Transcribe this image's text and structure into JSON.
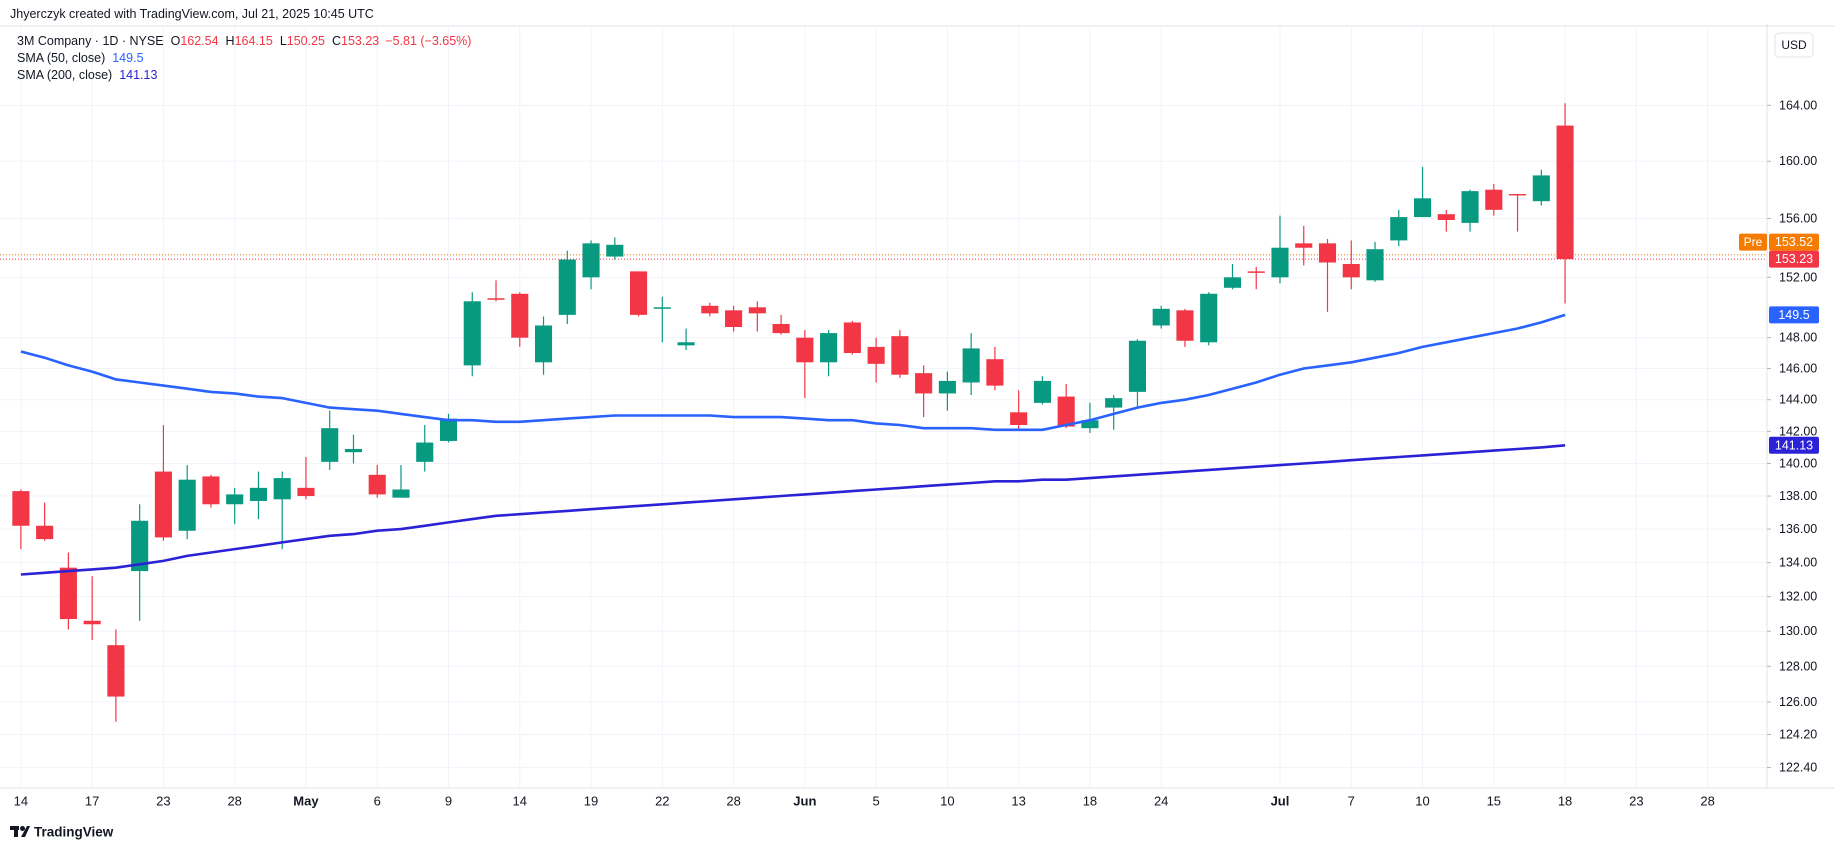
{
  "header": "Jhyerczyk created with TradingView.com, Jul 21, 2025 10:45 UTC",
  "footer": "TradingView",
  "currency": "USD",
  "chart_data": {
    "type": "candlestick",
    "title": "3M Company · 1D · NYSE",
    "ohlc_labels": [
      "O",
      "H",
      "L",
      "C"
    ],
    "change_label": "−5.81 (−3.65%)",
    "categories": [
      "14",
      null,
      null,
      "17",
      null,
      null,
      "23",
      null,
      null,
      "28",
      null,
      null,
      "May",
      null,
      null,
      "6",
      null,
      null,
      "9",
      null,
      null,
      "14",
      null,
      null,
      "19",
      null,
      null,
      "22",
      null,
      null,
      "28",
      null,
      null,
      "Jun",
      null,
      null,
      "5",
      null,
      null,
      "10",
      null,
      null,
      "13",
      null,
      null,
      "18",
      null,
      null,
      "24",
      null,
      null,
      null,
      null,
      "Jul",
      null,
      null,
      "7",
      null,
      null,
      "10",
      null,
      null,
      "15",
      null,
      null,
      "18",
      null,
      null,
      "23",
      null,
      null,
      "28",
      null,
      null
    ],
    "open": [
      138.3,
      136.2,
      133.7,
      130.6,
      129.2,
      133.5,
      139.5,
      135.9,
      139.2,
      137.5,
      137.7,
      137.8,
      138.5,
      140.1,
      140.7,
      139.3,
      137.9,
      140.1,
      141.4,
      146.2,
      150.6,
      150.9,
      146.4,
      149.5,
      152.0,
      153.4,
      152.4,
      149.9,
      147.5,
      150.1,
      149.8,
      150.0,
      148.9,
      148.0,
      146.4,
      149.0,
      147.4,
      148.1,
      145.7,
      144.4,
      145.1,
      146.6,
      143.2,
      143.8,
      144.2,
      142.2,
      143.5,
      144.5,
      148.8,
      149.8,
      147.7,
      151.3,
      152.4,
      152.0,
      154.3,
      154.3,
      152.9,
      151.8,
      154.5,
      156.1,
      156.3,
      155.7,
      158.0,
      157.7,
      157.2,
      162.54,
      null,
      null,
      null,
      null,
      null,
      null,
      null,
      null
    ],
    "high": [
      138.4,
      137.6,
      134.6,
      133.2,
      130.1,
      137.5,
      142.4,
      139.9,
      139.3,
      138.5,
      139.5,
      139.5,
      140.4,
      143.3,
      141.8,
      139.9,
      139.9,
      142.4,
      143.1,
      151.0,
      151.8,
      151.0,
      149.4,
      153.8,
      154.5,
      154.7,
      152.4,
      150.7,
      148.6,
      150.3,
      150.1,
      150.4,
      149.5,
      148.5,
      148.5,
      149.1,
      148.0,
      148.5,
      146.2,
      145.8,
      148.3,
      147.4,
      144.6,
      145.5,
      145.0,
      143.8,
      144.3,
      147.9,
      150.1,
      149.9,
      151.0,
      152.9,
      152.7,
      156.2,
      155.5,
      154.6,
      154.5,
      154.4,
      156.6,
      159.6,
      156.6,
      158.0,
      158.4,
      157.7,
      159.4,
      164.15,
      null,
      null,
      null,
      null,
      null,
      null,
      null,
      null
    ],
    "low": [
      134.8,
      135.3,
      130.1,
      129.5,
      124.9,
      130.6,
      135.3,
      135.4,
      137.3,
      136.3,
      136.6,
      134.8,
      137.8,
      139.6,
      140.0,
      137.9,
      137.9,
      139.5,
      141.3,
      145.5,
      150.4,
      147.4,
      145.6,
      148.9,
      151.2,
      153.2,
      149.4,
      147.7,
      147.2,
      149.4,
      148.4,
      148.4,
      148.2,
      144.1,
      145.5,
      146.9,
      145.1,
      145.4,
      142.9,
      143.3,
      144.3,
      144.6,
      142.1,
      143.7,
      142.2,
      141.9,
      142.1,
      143.5,
      148.6,
      147.4,
      147.5,
      151.2,
      151.2,
      151.6,
      152.8,
      149.7,
      151.2,
      151.7,
      154.1,
      156.1,
      155.1,
      155.1,
      156.2,
      155.1,
      156.9,
      150.25,
      null,
      null,
      null,
      null,
      null,
      null,
      null,
      null
    ],
    "close": [
      136.2,
      135.4,
      130.7,
      130.4,
      126.3,
      136.5,
      135.5,
      139.0,
      137.5,
      138.1,
      138.5,
      139.1,
      138.0,
      142.2,
      140.9,
      138.1,
      138.4,
      141.3,
      142.8,
      150.4,
      150.5,
      148.0,
      148.8,
      153.2,
      154.3,
      154.2,
      149.5,
      150.0,
      147.7,
      149.6,
      148.7,
      149.6,
      148.3,
      146.4,
      148.3,
      147.0,
      146.3,
      145.6,
      144.4,
      145.2,
      147.3,
      144.9,
      142.4,
      145.2,
      142.3,
      142.7,
      144.1,
      147.8,
      149.9,
      147.8,
      150.9,
      152.0,
      152.3,
      154.0,
      154.0,
      153.0,
      152.0,
      153.9,
      156.1,
      157.4,
      155.9,
      157.9,
      156.6,
      157.6,
      159.0,
      153.23,
      null,
      null,
      null,
      null,
      null,
      null,
      null,
      null
    ],
    "up_color": "#089981",
    "down_color": "#f23645",
    "series": [
      {
        "name": "SMA (50, close)",
        "color": "#2962ff",
        "values": [
          147.1,
          146.7,
          146.2,
          145.8,
          145.3,
          145.1,
          144.9,
          144.7,
          144.5,
          144.4,
          144.2,
          144.1,
          143.8,
          143.5,
          143.4,
          143.3,
          143.1,
          142.9,
          142.7,
          142.7,
          142.6,
          142.6,
          142.7,
          142.8,
          142.9,
          143.0,
          143.0,
          143.0,
          143.0,
          143.0,
          142.9,
          142.9,
          142.9,
          142.8,
          142.7,
          142.7,
          142.5,
          142.4,
          142.2,
          142.2,
          142.2,
          142.1,
          142.1,
          142.1,
          142.4,
          142.7,
          143.1,
          143.5,
          143.8,
          144.0,
          144.3,
          144.7,
          145.1,
          145.6,
          146.0,
          146.2,
          146.4,
          146.7,
          147.0,
          147.4,
          147.7,
          148.0,
          148.3,
          148.6,
          149.0,
          149.5,
          null,
          null,
          null,
          null,
          null,
          null,
          null,
          null
        ]
      },
      {
        "name": "SMA (200, close)",
        "color": "#2b21d6",
        "values": [
          133.3,
          133.4,
          133.5,
          133.6,
          133.7,
          133.9,
          134.1,
          134.4,
          134.6,
          134.8,
          135.0,
          135.2,
          135.4,
          135.6,
          135.7,
          135.9,
          136.0,
          136.2,
          136.4,
          136.6,
          136.8,
          136.9,
          137.0,
          137.1,
          137.2,
          137.3,
          137.4,
          137.5,
          137.6,
          137.7,
          137.8,
          137.9,
          138.0,
          138.1,
          138.2,
          138.3,
          138.4,
          138.5,
          138.6,
          138.7,
          138.8,
          138.9,
          138.9,
          139.0,
          139.0,
          139.1,
          139.2,
          139.3,
          139.4,
          139.5,
          139.6,
          139.7,
          139.8,
          139.9,
          140.0,
          140.1,
          140.2,
          140.3,
          140.4,
          140.5,
          140.6,
          140.7,
          140.8,
          140.9,
          141.0,
          141.13,
          null,
          null,
          null,
          null,
          null,
          null,
          null,
          null
        ]
      }
    ],
    "premarket": {
      "label": "Pre",
      "value": 153.52,
      "color": "#f57c00"
    },
    "ylim": [
      121.3,
      169.7
    ],
    "log_scale": true,
    "grid": true,
    "yticks": [
      {
        "value": 164,
        "label": "164.00"
      },
      {
        "value": 160,
        "label": "160.00"
      },
      {
        "value": 156,
        "label": "156.00"
      },
      {
        "value": 152,
        "label": "152.00"
      },
      {
        "value": 148,
        "label": "148.00"
      },
      {
        "value": 146,
        "label": "146.00"
      },
      {
        "value": 144,
        "label": "144.00"
      },
      {
        "value": 142,
        "label": "142.00"
      },
      {
        "value": 140,
        "label": "140.00"
      },
      {
        "value": 138,
        "label": "138.00"
      },
      {
        "value": 136,
        "label": "136.00"
      },
      {
        "value": 134,
        "label": "134.00"
      },
      {
        "value": 132,
        "label": "132.00"
      },
      {
        "value": 130,
        "label": "130.00"
      },
      {
        "value": 128,
        "label": "128.00"
      },
      {
        "value": 126,
        "label": "126.00"
      },
      {
        "value": 124.2,
        "label": "124.20"
      },
      {
        "value": 122.4,
        "label": "122.40"
      }
    ]
  }
}
